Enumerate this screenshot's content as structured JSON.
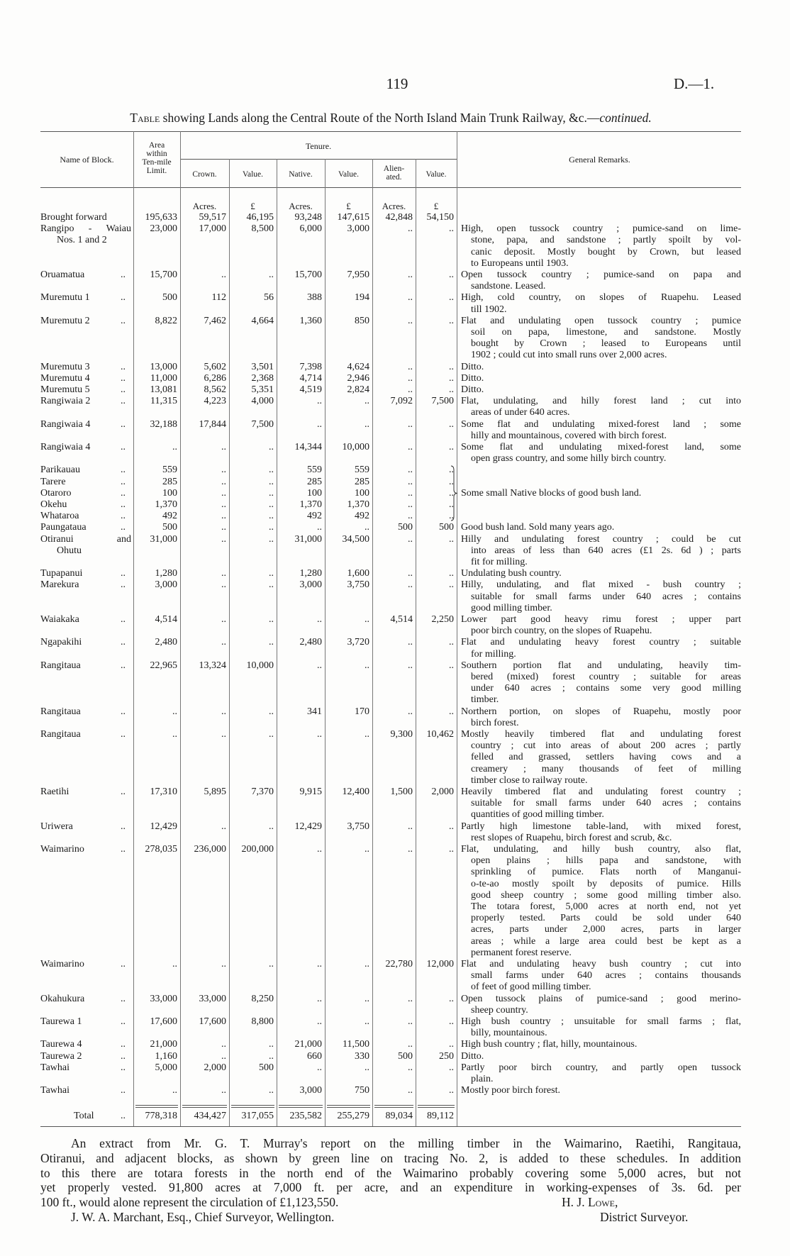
{
  "header": {
    "page_number": "119",
    "doc_ref": "D.—1."
  },
  "title": {
    "prefix": "Table",
    "text": " showing Lands along the Central Route of the North Island Main Trunk Railway, &c.—",
    "suffix": "continued."
  },
  "table": {
    "headers": {
      "name": "Name of Block.",
      "area": [
        "Area",
        "within",
        "Ten-mile",
        "Limit."
      ],
      "tenure": "Tenure.",
      "crown": "Crown.",
      "crown_value": "Value.",
      "native": "Native.",
      "native_value": "Value.",
      "alienated": [
        "Alien-",
        "ated."
      ],
      "alienated_value": "Value.",
      "remarks": "General Remarks."
    },
    "units": [
      "",
      "Acres.",
      "£",
      "Acres.",
      "£",
      "Acres.",
      "£"
    ],
    "rows": [
      {
        "name": [
          "Brought forward"
        ],
        "leader": "",
        "values": [
          "195,633",
          "59,517",
          "46,195",
          "93,248",
          "147,615",
          "42,848",
          "54,150"
        ],
        "remarks": []
      },
      {
        "name": [
          "Rangipo - Waiau",
          "Nos. 1 and 2"
        ],
        "leader": "",
        "values": [
          "23,000",
          "17,000",
          "8,500",
          "6,000",
          "3,000",
          "..",
          ".."
        ],
        "remarks": [
          "High, open tussock country ; pumice-sand on lime-",
          "stone, papa, and sandstone ; partly spoilt by vol-",
          "canic deposit.   Mostly bought by Crown, but leased",
          "to Europeans until 1903."
        ]
      },
      {
        "name": [
          "Oruamatua"
        ],
        "leader": "..",
        "values": [
          "15,700",
          "..",
          "..",
          "15,700",
          "7,950",
          "..",
          ".."
        ],
        "remarks": [
          "Open tussock country ;  pumice-sand on papa and",
          "sandstone.  Leased."
        ]
      },
      {
        "name": [
          "Muremutu 1"
        ],
        "leader": "..",
        "values": [
          "500",
          "112",
          "56",
          "388",
          "194",
          "..",
          ".."
        ],
        "remarks": [
          "High, cold country, on slopes of Ruapehu.  Leased",
          "till 1902."
        ]
      },
      {
        "name": [
          "Muremutu 2"
        ],
        "leader": "..",
        "values": [
          "8,822",
          "7,462",
          "4,664",
          "1,360",
          "850",
          "..",
          ".."
        ],
        "remarks": [
          "Flat and undulating open tussock country ; pumice",
          "soil on papa, limestone, and sandstone.  Mostly",
          "bought by Crown ; leased to Europeans until",
          "1902 ; could cut into small runs over 2,000 acres."
        ]
      },
      {
        "name": [
          "Muremutu 3"
        ],
        "leader": "..",
        "values": [
          "13,000",
          "5,602",
          "3,501",
          "7,398",
          "4,624",
          "..",
          ".."
        ],
        "remarks": [
          "Ditto."
        ]
      },
      {
        "name": [
          "Muremutu 4"
        ],
        "leader": "..",
        "values": [
          "11,000",
          "6,286",
          "2,368",
          "4,714",
          "2,946",
          "..",
          ".."
        ],
        "remarks": [
          "Ditto."
        ]
      },
      {
        "name": [
          "Muremutu 5"
        ],
        "leader": "..",
        "values": [
          "13,081",
          "8,562",
          "5,351",
          "4,519",
          "2,824",
          "..",
          ".."
        ],
        "remarks": [
          "Ditto."
        ]
      },
      {
        "name": [
          "Rangiwaia 2"
        ],
        "leader": "..",
        "values": [
          "11,315",
          "4,223",
          "4,000",
          "..",
          "..",
          "7,092",
          "7,500"
        ],
        "remarks": [
          "Flat, undulating, and hilly forest land ; cut into",
          "areas of under 640 acres."
        ]
      },
      {
        "name": [
          "Rangiwaia 4"
        ],
        "leader": "..",
        "values": [
          "32,188",
          "17,844",
          "7,500",
          "..",
          "..",
          "..",
          ".."
        ],
        "remarks": [
          "Some flat and undulating mixed-forest land ; some",
          "hilly and mountainous, covered with birch forest."
        ]
      },
      {
        "name": [
          "Rangiwaia 4"
        ],
        "leader": "..",
        "values": [
          "..",
          "..",
          "..",
          "14,344",
          "10,000",
          "..",
          ".."
        ],
        "remarks": [
          "Some flat and undulating mixed-forest land, some",
          "open grass country, and some hilly birch country."
        ]
      },
      {
        "name": [
          "Parikauau"
        ],
        "leader": "..",
        "group": "native-blocks",
        "values": [
          "559",
          "..",
          "..",
          "559",
          "559",
          "..",
          ".."
        ],
        "remarks": []
      },
      {
        "name": [
          "Tarere"
        ],
        "leader": "..",
        "group": "native-blocks",
        "values": [
          "285",
          "..",
          "..",
          "285",
          "285",
          "..",
          ".."
        ],
        "remarks": []
      },
      {
        "name": [
          "Otaroro"
        ],
        "leader": "..",
        "group": "native-blocks",
        "values": [
          "100",
          "..",
          "..",
          "100",
          "100",
          "..",
          ".."
        ],
        "remarks": [
          "Some small Native blocks of good bush land."
        ]
      },
      {
        "name": [
          "Okehu"
        ],
        "leader": "..",
        "group": "native-blocks",
        "values": [
          "1,370",
          "..",
          "..",
          "1,370",
          "1,370",
          "..",
          ".."
        ],
        "remarks": []
      },
      {
        "name": [
          "Whataroa"
        ],
        "leader": "..",
        "group": "native-blocks",
        "values": [
          "492",
          "..",
          "..",
          "492",
          "492",
          "..",
          ".."
        ],
        "remarks": []
      },
      {
        "name": [
          "Paungataua"
        ],
        "leader": "..",
        "values": [
          "500",
          "..",
          "..",
          "..",
          "..",
          "500",
          "500"
        ],
        "remarks": [
          "Good bush land.   Sold many years ago."
        ]
      },
      {
        "name": [
          "Otiranui      and",
          "Ohutu"
        ],
        "leader": "",
        "values": [
          "31,000",
          "..",
          "..",
          "31,000",
          "34,500",
          "..",
          ".."
        ],
        "remarks": [
          "Hilly and undulating forest country ; could be cut",
          "into areas of less than 640 acres (£1 2s. 6d ) ; parts",
          "fit for milling."
        ]
      },
      {
        "name": [
          "Tupapanui"
        ],
        "leader": "..",
        "values": [
          "1,280",
          "..",
          "..",
          "1,280",
          "1,600",
          "..",
          ".."
        ],
        "remarks": [
          "Undulating bush country."
        ]
      },
      {
        "name": [
          "Marekura"
        ],
        "leader": "..",
        "values": [
          "3,000",
          "..",
          "..",
          "3,000",
          "3,750",
          "..",
          ".."
        ],
        "remarks": [
          "Hilly, undulating, and flat mixed - bush country ;",
          "suitable for small farms under 640 acres ; contains",
          "good milling timber."
        ]
      },
      {
        "name": [
          "Waiakaka"
        ],
        "leader": "..",
        "values": [
          "4,514",
          "..",
          "..",
          "..",
          "..",
          "4,514",
          "2,250"
        ],
        "remarks": [
          "Lower part good heavy rimu forest ; upper part",
          "poor birch country, on the slopes of Ruapehu."
        ]
      },
      {
        "name": [
          "Ngapakihi"
        ],
        "leader": "..",
        "values": [
          "2,480",
          "..",
          "..",
          "2,480",
          "3,720",
          "..",
          ".."
        ],
        "remarks": [
          "Flat and undulating heavy forest country ; suitable",
          "for milling."
        ]
      },
      {
        "name": [
          "Rangitaua"
        ],
        "leader": "..",
        "values": [
          "22,965",
          "13,324",
          "10,000",
          "..",
          "..",
          "..",
          ".."
        ],
        "remarks": [
          "Southern portion flat and undulating, heavily tim-",
          "bered (mixed) forest country ; suitable for areas",
          "under 640 acres ; contains some very good milling",
          "timber."
        ]
      },
      {
        "name": [
          "Rangitaua"
        ],
        "leader": "..",
        "values": [
          "..",
          "..",
          "..",
          "341",
          "170",
          "..",
          ".."
        ],
        "remarks": [
          "Northern portion, on slopes of Ruapehu, mostly poor",
          "birch forest."
        ]
      },
      {
        "name": [
          "Rangitaua"
        ],
        "leader": "..",
        "values": [
          "..",
          "..",
          "..",
          "..",
          "..",
          "9,300",
          "10,462"
        ],
        "remarks": [
          "Mostly heavily timbered flat and undulating forest",
          "country ; cut into areas of about 200 acres ; partly",
          "felled and grassed, settlers having cows and a",
          "creamery ; many thousands of feet of milling",
          "timber close to railway route."
        ]
      },
      {
        "name": [
          "Raetihi"
        ],
        "leader": "..",
        "values": [
          "17,310",
          "5,895",
          "7,370",
          "9,915",
          "12,400",
          "1,500",
          "2,000"
        ],
        "remarks": [
          "Heavily timbered flat and undulating forest country ;",
          "suitable for small farms under 640 acres ; contains",
          "quantities of good milling timber."
        ]
      },
      {
        "name": [
          "Uriwera"
        ],
        "leader": "..",
        "values": [
          "12,429",
          "..",
          "..",
          "12,429",
          "3,750",
          "..",
          ".."
        ],
        "remarks": [
          "Partly high limestone table-land, with mixed forest,",
          "rest slopes of Ruapehu, birch forest and scrub, &c."
        ]
      },
      {
        "name": [
          "Waimarino"
        ],
        "leader": "..",
        "values": [
          "278,035",
          "236,000",
          "200,000",
          "..",
          "..",
          "..",
          ".."
        ],
        "remarks": [
          "Flat, undulating, and hilly bush country, also flat,",
          "open plains ; hills papa and sandstone, with",
          "sprinkling of pumice.  Flats north of Manganui-",
          "o-te-ao mostly spoilt by deposits of pumice.  Hills",
          "good sheep country ; some good milling timber also.",
          "The totara forest, 5,000 acres at north end, not yet",
          "properly tested.  Parts could be sold under 640",
          "acres, parts under 2,000 acres, parts in larger",
          "areas ; while a large area could best be kept as a",
          "permanent forest reserve."
        ]
      },
      {
        "name": [
          "Waimarino"
        ],
        "leader": "..",
        "values": [
          "..",
          "..",
          "..",
          "..",
          "..",
          "22,780",
          "12,000"
        ],
        "remarks": [
          "Flat and undulating heavy bush country ; cut into",
          "small farms under 640 acres ; contains thousands",
          "of feet of good milling timber."
        ]
      },
      {
        "name": [
          "Okahukura"
        ],
        "leader": "..",
        "values": [
          "33,000",
          "33,000",
          "8,250",
          "..",
          "..",
          "..",
          ".."
        ],
        "remarks": [
          "Open tussock plains of pumice-sand ; good merino-",
          "sheep country."
        ]
      },
      {
        "name": [
          "Taurewa 1"
        ],
        "leader": "..",
        "values": [
          "17,600",
          "17,600",
          "8,800",
          "..",
          "..",
          "..",
          ".."
        ],
        "remarks": [
          "High bush country ; unsuitable for small farms ; flat,",
          "billy, mountainous."
        ]
      },
      {
        "name": [
          "Taurewa 4"
        ],
        "leader": "..",
        "values": [
          "21,000",
          "..",
          "..",
          "21,000",
          "11,500",
          "..",
          ".."
        ],
        "remarks": [
          "High bush country ;  flat, hilly, mountainous."
        ]
      },
      {
        "name": [
          "Taurewa 2"
        ],
        "leader": "..",
        "values": [
          "1,160",
          "..",
          "..",
          "660",
          "330",
          "500",
          "250"
        ],
        "remarks": [
          "Ditto."
        ]
      },
      {
        "name": [
          "Tawhai"
        ],
        "leader": "..",
        "values": [
          "5,000",
          "2,000",
          "500",
          "..",
          "..",
          "..",
          ".."
        ],
        "remarks": [
          "Partly poor birch country, and partly open tussock",
          "plain."
        ]
      },
      {
        "name": [
          "Tawhai"
        ],
        "leader": "..",
        "values": [
          "..",
          "..",
          "..",
          "3,000",
          "750",
          "..",
          ".."
        ],
        "remarks": [
          "Mostly poor birch forest."
        ]
      }
    ],
    "total": {
      "label": "Total",
      "leader": "..",
      "values": [
        "778,318",
        "434,427",
        "317,055",
        "235,582",
        "255,279",
        "89,034",
        "89,112"
      ]
    }
  },
  "footer": {
    "paragraph": [
      "An extract from Mr. G. T. Murray's report on the milling timber in the Waimarino, Raetihi, Rangitaua,",
      "Otiranui, and adjacent blocks, as shown by green line on tracing No. 2, is added to these schedules.   In addition",
      "to this there are totara forests in the north end of the Waimarino probably covering some 5,000 acres, but not",
      "yet properly vested.  91,800 acres at 7,000 ft. per acre, and an expenditure in working-expenses of 3s. 6d. per",
      "100 ft., would alone represent the circulation of £1,123,550."
    ],
    "signatory_name": "H. J. Lowe,",
    "signatory_title": "District Surveyor.",
    "addressee": "J. W. A. Marchant, Esq., Chief Surveyor, Wellington."
  }
}
